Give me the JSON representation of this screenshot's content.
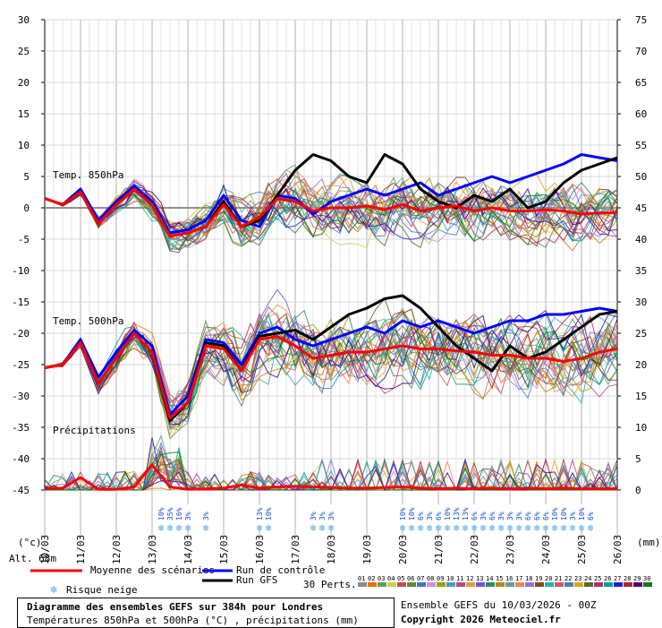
{
  "chart_data": {
    "type": "line",
    "title": "Diagramme des ensembles GEFS sur 384h pour Londres",
    "subtitle": "Températures 850hPa et 500hPa (°C) , précipitations (mm)",
    "left_axis": {
      "unit_label": "(°c)",
      "ticks": [
        30,
        25,
        20,
        15,
        10,
        5,
        0,
        -5,
        -10,
        -15,
        -20,
        -25,
        -30,
        -35,
        -40,
        -45
      ],
      "range": [
        -45,
        30
      ]
    },
    "right_axis": {
      "unit_label": "(mm)",
      "ticks": [
        75,
        70,
        65,
        60,
        55,
        50,
        45,
        40,
        35,
        30,
        25,
        20,
        15,
        10,
        5,
        0
      ],
      "range": [
        0,
        75
      ]
    },
    "x_axis": {
      "ticks": [
        "10/03",
        "11/03",
        "12/03",
        "13/03",
        "14/03",
        "15/03",
        "16/03",
        "17/03",
        "18/03",
        "19/03",
        "20/03",
        "21/03",
        "22/03",
        "23/03",
        "24/03",
        "25/03",
        "26/03"
      ],
      "hours_range": [
        0,
        384
      ]
    },
    "panel_labels": {
      "t850": "Temp. 850hPa",
      "t500": "Temp. 500hPa",
      "precip": "Précipitations"
    },
    "altitude_label": "Alt. 68m",
    "legend": {
      "mean": "Moyenne des scénarios",
      "control": "Run de contrôle",
      "gfs": "Run GFS",
      "snow": "Risque neige",
      "perts": "30 Perts.",
      "pert_numbers": [
        "01",
        "02",
        "03",
        "04",
        "05",
        "06",
        "07",
        "08",
        "09",
        "10",
        "11",
        "12",
        "13",
        "14",
        "15",
        "16",
        "17",
        "18",
        "19",
        "20",
        "21",
        "22",
        "23",
        "24",
        "25",
        "26",
        "27",
        "28",
        "29",
        "30"
      ],
      "pert_colors": [
        "#8c8c8c",
        "#e67300",
        "#5f9f5f",
        "#d9c94a",
        "#c64a4a",
        "#5a8a3a",
        "#3a7ac2",
        "#d98ae0",
        "#a0a000",
        "#40a0c0",
        "#b04a8a",
        "#d9a040",
        "#6a5acd",
        "#2e8b57",
        "#b8860b",
        "#5f9ea0",
        "#ff7f50",
        "#9370db",
        "#8b4513",
        "#20b2aa",
        "#cd5c5c",
        "#4682b4",
        "#daa520",
        "#556b2f",
        "#b03060",
        "#00a0a0",
        "#2020c0",
        "#a52a2a",
        "#4b0082",
        "#008000"
      ]
    },
    "series": [
      {
        "name": "Moyenne des scénarios (850hPa)",
        "color": "#ff0000",
        "hours": [
          0,
          12,
          24,
          36,
          48,
          60,
          72,
          84,
          96,
          108,
          120,
          132,
          144,
          156,
          168,
          180,
          192,
          204,
          216,
          228,
          240,
          252,
          264,
          276,
          288,
          300,
          312,
          324,
          336,
          348,
          360,
          372,
          384
        ],
        "values": [
          1.5,
          0.5,
          2.5,
          -2.5,
          0.5,
          3.0,
          0.5,
          -4.5,
          -4.0,
          -3.0,
          0.5,
          -3.0,
          -1.5,
          1.5,
          1.0,
          -0.5,
          0.0,
          0.0,
          0.3,
          -0.3,
          0.5,
          -0.5,
          0.0,
          0.3,
          -0.5,
          0.0,
          -0.5,
          -0.5,
          -0.3,
          -0.5,
          -1.0,
          -0.8,
          -0.8
        ]
      },
      {
        "name": "Moyenne des scénarios (500hPa)",
        "color": "#ff0000",
        "hours": [
          0,
          12,
          24,
          36,
          48,
          60,
          72,
          84,
          96,
          108,
          120,
          132,
          144,
          156,
          168,
          180,
          192,
          204,
          216,
          228,
          240,
          252,
          264,
          276,
          288,
          300,
          312,
          324,
          336,
          348,
          360,
          372,
          384
        ],
        "values": [
          -25.5,
          -25.0,
          -21.5,
          -28.0,
          -24.0,
          -20.0,
          -23.0,
          -33.5,
          -31.0,
          -22.0,
          -22.5,
          -26.0,
          -21.0,
          -20.5,
          -22.0,
          -24.0,
          -23.5,
          -23.0,
          -23.0,
          -22.5,
          -22.0,
          -22.5,
          -22.5,
          -22.8,
          -23.0,
          -23.5,
          -23.5,
          -24.0,
          -24.0,
          -24.5,
          -24.0,
          -23.0,
          -22.5
        ]
      },
      {
        "name": "Moyenne des scénarios (précipitations)",
        "color": "#ff0000",
        "hours": [
          0,
          12,
          24,
          36,
          48,
          60,
          72,
          84,
          96,
          108,
          120,
          132,
          144,
          156,
          168,
          180,
          192,
          204,
          216,
          228,
          240,
          252,
          264,
          276,
          288,
          300,
          312,
          324,
          336,
          348,
          360,
          372,
          384
        ],
        "values": [
          0.2,
          0.3,
          2.0,
          0.1,
          0.1,
          0.5,
          4.0,
          0.5,
          0.1,
          0.2,
          0.3,
          0.8,
          0.3,
          0.5,
          0.6,
          0.5,
          0.4,
          0.3,
          0.3,
          0.4,
          0.5,
          0.3,
          0.2,
          0.3,
          0.2,
          0.3,
          0.2,
          0.3,
          0.2,
          0.3,
          0.2,
          0.2,
          0.2
        ]
      },
      {
        "name": "Run de contrôle (850hPa)",
        "color": "#0000ff",
        "hours": [
          0,
          12,
          24,
          36,
          48,
          60,
          72,
          84,
          96,
          108,
          120,
          132,
          144,
          156,
          168,
          180,
          192,
          204,
          216,
          228,
          240,
          252,
          264,
          276,
          288,
          300,
          312,
          324,
          336,
          348,
          360,
          372,
          384
        ],
        "values": [
          1.5,
          0.5,
          3.0,
          -2.0,
          1.0,
          3.5,
          1.0,
          -4.0,
          -3.5,
          -2.0,
          2.0,
          -2.0,
          -3.0,
          2.0,
          1.5,
          -1.0,
          1.0,
          2.0,
          3.0,
          2.0,
          3.0,
          4.0,
          2.0,
          3.0,
          4.0,
          5.0,
          4.0,
          5.0,
          6.0,
          7.0,
          8.5,
          8.0,
          7.5
        ]
      },
      {
        "name": "Run de contrôle (500hPa)",
        "color": "#0000ff",
        "hours": [
          0,
          12,
          24,
          36,
          48,
          60,
          72,
          84,
          96,
          108,
          120,
          132,
          144,
          156,
          168,
          180,
          192,
          204,
          216,
          228,
          240,
          252,
          264,
          276,
          288,
          300,
          312,
          324,
          336,
          348,
          360,
          372,
          384
        ],
        "values": [
          -25.5,
          -25.0,
          -21.0,
          -27.0,
          -23.0,
          -19.5,
          -22.0,
          -33.0,
          -30.0,
          -21.0,
          -21.5,
          -25.0,
          -20.0,
          -19.0,
          -21.0,
          -22.0,
          -21.0,
          -20.0,
          -19.0,
          -20.0,
          -18.0,
          -19.0,
          -18.0,
          -19.0,
          -20.0,
          -19.0,
          -18.0,
          -18.0,
          -17.0,
          -17.0,
          -16.5,
          -16.0,
          -16.5
        ]
      },
      {
        "name": "Run GFS (850hPa)",
        "color": "#000000",
        "hours": [
          0,
          12,
          24,
          36,
          48,
          60,
          72,
          84,
          96,
          108,
          120,
          132,
          144,
          156,
          168,
          180,
          192,
          204,
          216,
          228,
          240,
          252,
          264,
          276,
          288,
          300,
          312,
          324,
          336,
          348,
          360,
          372,
          384
        ],
        "values": [
          1.5,
          0.5,
          2.5,
          -2.5,
          0.5,
          3.0,
          0.5,
          -4.5,
          -4.0,
          -3.0,
          1.0,
          -3.0,
          -2.0,
          2.0,
          6.0,
          8.5,
          7.5,
          5.0,
          4.0,
          8.5,
          7.0,
          3.0,
          1.0,
          0.0,
          2.0,
          1.0,
          3.0,
          0.0,
          1.0,
          4.0,
          6.0,
          7.0,
          8.0
        ]
      },
      {
        "name": "Run GFS (500hPa)",
        "color": "#000000",
        "hours": [
          0,
          12,
          24,
          36,
          48,
          60,
          72,
          84,
          96,
          108,
          120,
          132,
          144,
          156,
          168,
          180,
          192,
          204,
          216,
          228,
          240,
          252,
          264,
          276,
          288,
          300,
          312,
          324,
          336,
          348,
          360,
          372,
          384
        ],
        "values": [
          -25.5,
          -25.0,
          -21.5,
          -28.0,
          -24.0,
          -20.0,
          -23.0,
          -34.0,
          -31.0,
          -21.5,
          -22.0,
          -26.0,
          -20.5,
          -20.0,
          -19.5,
          -21.0,
          -19.0,
          -17.0,
          -16.0,
          -14.5,
          -14.0,
          -16.0,
          -19.0,
          -22.0,
          -24.0,
          -26.0,
          -22.0,
          -24.0,
          -23.0,
          -21.0,
          -19.0,
          -17.0,
          -16.5
        ]
      }
    ],
    "snow_risk": [
      {
        "hour": 78,
        "label": "10%"
      },
      {
        "hour": 84,
        "label": "35%"
      },
      {
        "hour": 90,
        "label": "16%"
      },
      {
        "hour": 96,
        "label": "3%"
      },
      {
        "hour": 108,
        "label": "3%"
      },
      {
        "hour": 144,
        "label": "13%"
      },
      {
        "hour": 150,
        "label": "10%"
      },
      {
        "hour": 180,
        "label": "3%"
      },
      {
        "hour": 186,
        "label": "3%"
      },
      {
        "hour": 192,
        "label": "3%"
      },
      {
        "hour": 240,
        "label": "10%"
      },
      {
        "hour": 246,
        "label": "10%"
      },
      {
        "hour": 252,
        "label": "6%"
      },
      {
        "hour": 258,
        "label": "3%"
      },
      {
        "hour": 264,
        "label": "6%"
      },
      {
        "hour": 270,
        "label": "10%"
      },
      {
        "hour": 276,
        "label": "13%"
      },
      {
        "hour": 282,
        "label": "13%"
      },
      {
        "hour": 288,
        "label": "6%"
      },
      {
        "hour": 294,
        "label": "3%"
      },
      {
        "hour": 300,
        "label": "6%"
      },
      {
        "hour": 306,
        "label": "3%"
      },
      {
        "hour": 312,
        "label": "3%"
      },
      {
        "hour": 318,
        "label": "3%"
      },
      {
        "hour": 324,
        "label": "6%"
      },
      {
        "hour": 330,
        "label": "6%"
      },
      {
        "hour": 336,
        "label": "6%"
      },
      {
        "hour": 342,
        "label": "10%"
      },
      {
        "hour": 348,
        "label": "10%"
      },
      {
        "hour": 354,
        "label": "3%"
      },
      {
        "hour": 360,
        "label": "10%"
      },
      {
        "hour": 366,
        "label": "6%"
      }
    ]
  },
  "footer": {
    "title": "Diagramme des ensembles GEFS sur 384h pour Londres",
    "subtitle": "Températures 850hPa et 500hPa (°C) , précipitations (mm)",
    "run_info": "Ensemble GEFS du 10/03/2026 - 00Z",
    "copyright": "Copyright 2026 Meteociel.fr"
  }
}
